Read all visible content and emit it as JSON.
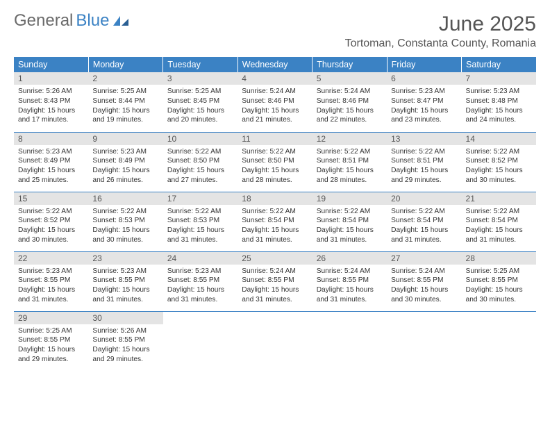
{
  "brand": {
    "part1": "General",
    "part2": "Blue"
  },
  "title": "June 2025",
  "location": "Tortoman, Constanta County, Romania",
  "colors": {
    "header_bg": "#3b82c4",
    "header_text": "#ffffff",
    "daynum_bg": "#e4e4e4",
    "border": "#3b82c4",
    "title_color": "#555555"
  },
  "typography": {
    "title_fontsize": 30,
    "location_fontsize": 16,
    "dayheader_fontsize": 12.5,
    "daynum_fontsize": 12,
    "cell_fontsize": 10.2
  },
  "day_headers": [
    "Sunday",
    "Monday",
    "Tuesday",
    "Wednesday",
    "Thursday",
    "Friday",
    "Saturday"
  ],
  "weeks": [
    [
      {
        "n": "1",
        "sr": "5:26 AM",
        "ss": "8:43 PM",
        "dl": "15 hours and 17 minutes."
      },
      {
        "n": "2",
        "sr": "5:25 AM",
        "ss": "8:44 PM",
        "dl": "15 hours and 19 minutes."
      },
      {
        "n": "3",
        "sr": "5:25 AM",
        "ss": "8:45 PM",
        "dl": "15 hours and 20 minutes."
      },
      {
        "n": "4",
        "sr": "5:24 AM",
        "ss": "8:46 PM",
        "dl": "15 hours and 21 minutes."
      },
      {
        "n": "5",
        "sr": "5:24 AM",
        "ss": "8:46 PM",
        "dl": "15 hours and 22 minutes."
      },
      {
        "n": "6",
        "sr": "5:23 AM",
        "ss": "8:47 PM",
        "dl": "15 hours and 23 minutes."
      },
      {
        "n": "7",
        "sr": "5:23 AM",
        "ss": "8:48 PM",
        "dl": "15 hours and 24 minutes."
      }
    ],
    [
      {
        "n": "8",
        "sr": "5:23 AM",
        "ss": "8:49 PM",
        "dl": "15 hours and 25 minutes."
      },
      {
        "n": "9",
        "sr": "5:23 AM",
        "ss": "8:49 PM",
        "dl": "15 hours and 26 minutes."
      },
      {
        "n": "10",
        "sr": "5:22 AM",
        "ss": "8:50 PM",
        "dl": "15 hours and 27 minutes."
      },
      {
        "n": "11",
        "sr": "5:22 AM",
        "ss": "8:50 PM",
        "dl": "15 hours and 28 minutes."
      },
      {
        "n": "12",
        "sr": "5:22 AM",
        "ss": "8:51 PM",
        "dl": "15 hours and 28 minutes."
      },
      {
        "n": "13",
        "sr": "5:22 AM",
        "ss": "8:51 PM",
        "dl": "15 hours and 29 minutes."
      },
      {
        "n": "14",
        "sr": "5:22 AM",
        "ss": "8:52 PM",
        "dl": "15 hours and 30 minutes."
      }
    ],
    [
      {
        "n": "15",
        "sr": "5:22 AM",
        "ss": "8:52 PM",
        "dl": "15 hours and 30 minutes."
      },
      {
        "n": "16",
        "sr": "5:22 AM",
        "ss": "8:53 PM",
        "dl": "15 hours and 30 minutes."
      },
      {
        "n": "17",
        "sr": "5:22 AM",
        "ss": "8:53 PM",
        "dl": "15 hours and 31 minutes."
      },
      {
        "n": "18",
        "sr": "5:22 AM",
        "ss": "8:54 PM",
        "dl": "15 hours and 31 minutes."
      },
      {
        "n": "19",
        "sr": "5:22 AM",
        "ss": "8:54 PM",
        "dl": "15 hours and 31 minutes."
      },
      {
        "n": "20",
        "sr": "5:22 AM",
        "ss": "8:54 PM",
        "dl": "15 hours and 31 minutes."
      },
      {
        "n": "21",
        "sr": "5:22 AM",
        "ss": "8:54 PM",
        "dl": "15 hours and 31 minutes."
      }
    ],
    [
      {
        "n": "22",
        "sr": "5:23 AM",
        "ss": "8:55 PM",
        "dl": "15 hours and 31 minutes."
      },
      {
        "n": "23",
        "sr": "5:23 AM",
        "ss": "8:55 PM",
        "dl": "15 hours and 31 minutes."
      },
      {
        "n": "24",
        "sr": "5:23 AM",
        "ss": "8:55 PM",
        "dl": "15 hours and 31 minutes."
      },
      {
        "n": "25",
        "sr": "5:24 AM",
        "ss": "8:55 PM",
        "dl": "15 hours and 31 minutes."
      },
      {
        "n": "26",
        "sr": "5:24 AM",
        "ss": "8:55 PM",
        "dl": "15 hours and 31 minutes."
      },
      {
        "n": "27",
        "sr": "5:24 AM",
        "ss": "8:55 PM",
        "dl": "15 hours and 30 minutes."
      },
      {
        "n": "28",
        "sr": "5:25 AM",
        "ss": "8:55 PM",
        "dl": "15 hours and 30 minutes."
      }
    ],
    [
      {
        "n": "29",
        "sr": "5:25 AM",
        "ss": "8:55 PM",
        "dl": "15 hours and 29 minutes."
      },
      {
        "n": "30",
        "sr": "5:26 AM",
        "ss": "8:55 PM",
        "dl": "15 hours and 29 minutes."
      },
      null,
      null,
      null,
      null,
      null
    ]
  ],
  "labels": {
    "sunrise": "Sunrise:",
    "sunset": "Sunset:",
    "daylight": "Daylight:"
  }
}
